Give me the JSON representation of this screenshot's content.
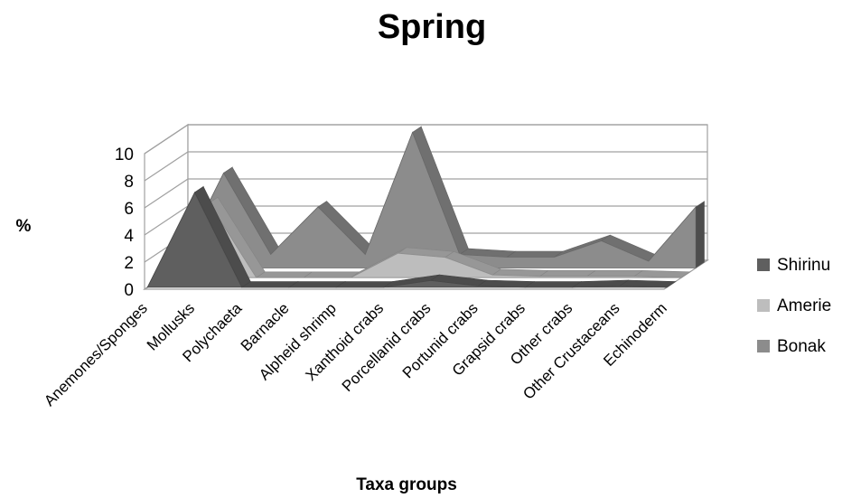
{
  "chart_data": {
    "type": "area",
    "subtype": "3d-area",
    "title": "Spring",
    "xlabel": "Taxa groups",
    "ylabel": "%",
    "ylim": [
      0,
      10
    ],
    "yticks": [
      0,
      2,
      4,
      6,
      8,
      10
    ],
    "grid": true,
    "legend_position": "right",
    "categories": [
      "Anemones/Sponges",
      "Mollusks",
      "Polychaeta",
      "Barnacle",
      "Alpheid shrimp",
      "Xanthoid crabs",
      "Porcellanid crabs",
      "Portunid crabs",
      "Grapsid crabs",
      "Other crabs",
      "Other Crustaceans",
      "Echinoderm"
    ],
    "series": [
      {
        "name": "Shirinu",
        "color": "#5f5f5f",
        "values": [
          0,
          7,
          0,
          0,
          0,
          0,
          0.5,
          0.1,
          0,
          0,
          0.1,
          0
        ]
      },
      {
        "name": "Amerie",
        "color": "#bdbdbd",
        "values": [
          0,
          5.5,
          0,
          0,
          0,
          1.8,
          1.5,
          0.2,
          0.1,
          0.1,
          0.1,
          0
        ]
      },
      {
        "name": "Bonak",
        "color": "#8c8c8c",
        "values": [
          0,
          7,
          1,
          4.5,
          1,
          10,
          1,
          0.8,
          0.8,
          2,
          0.5,
          4.5
        ]
      }
    ]
  }
}
